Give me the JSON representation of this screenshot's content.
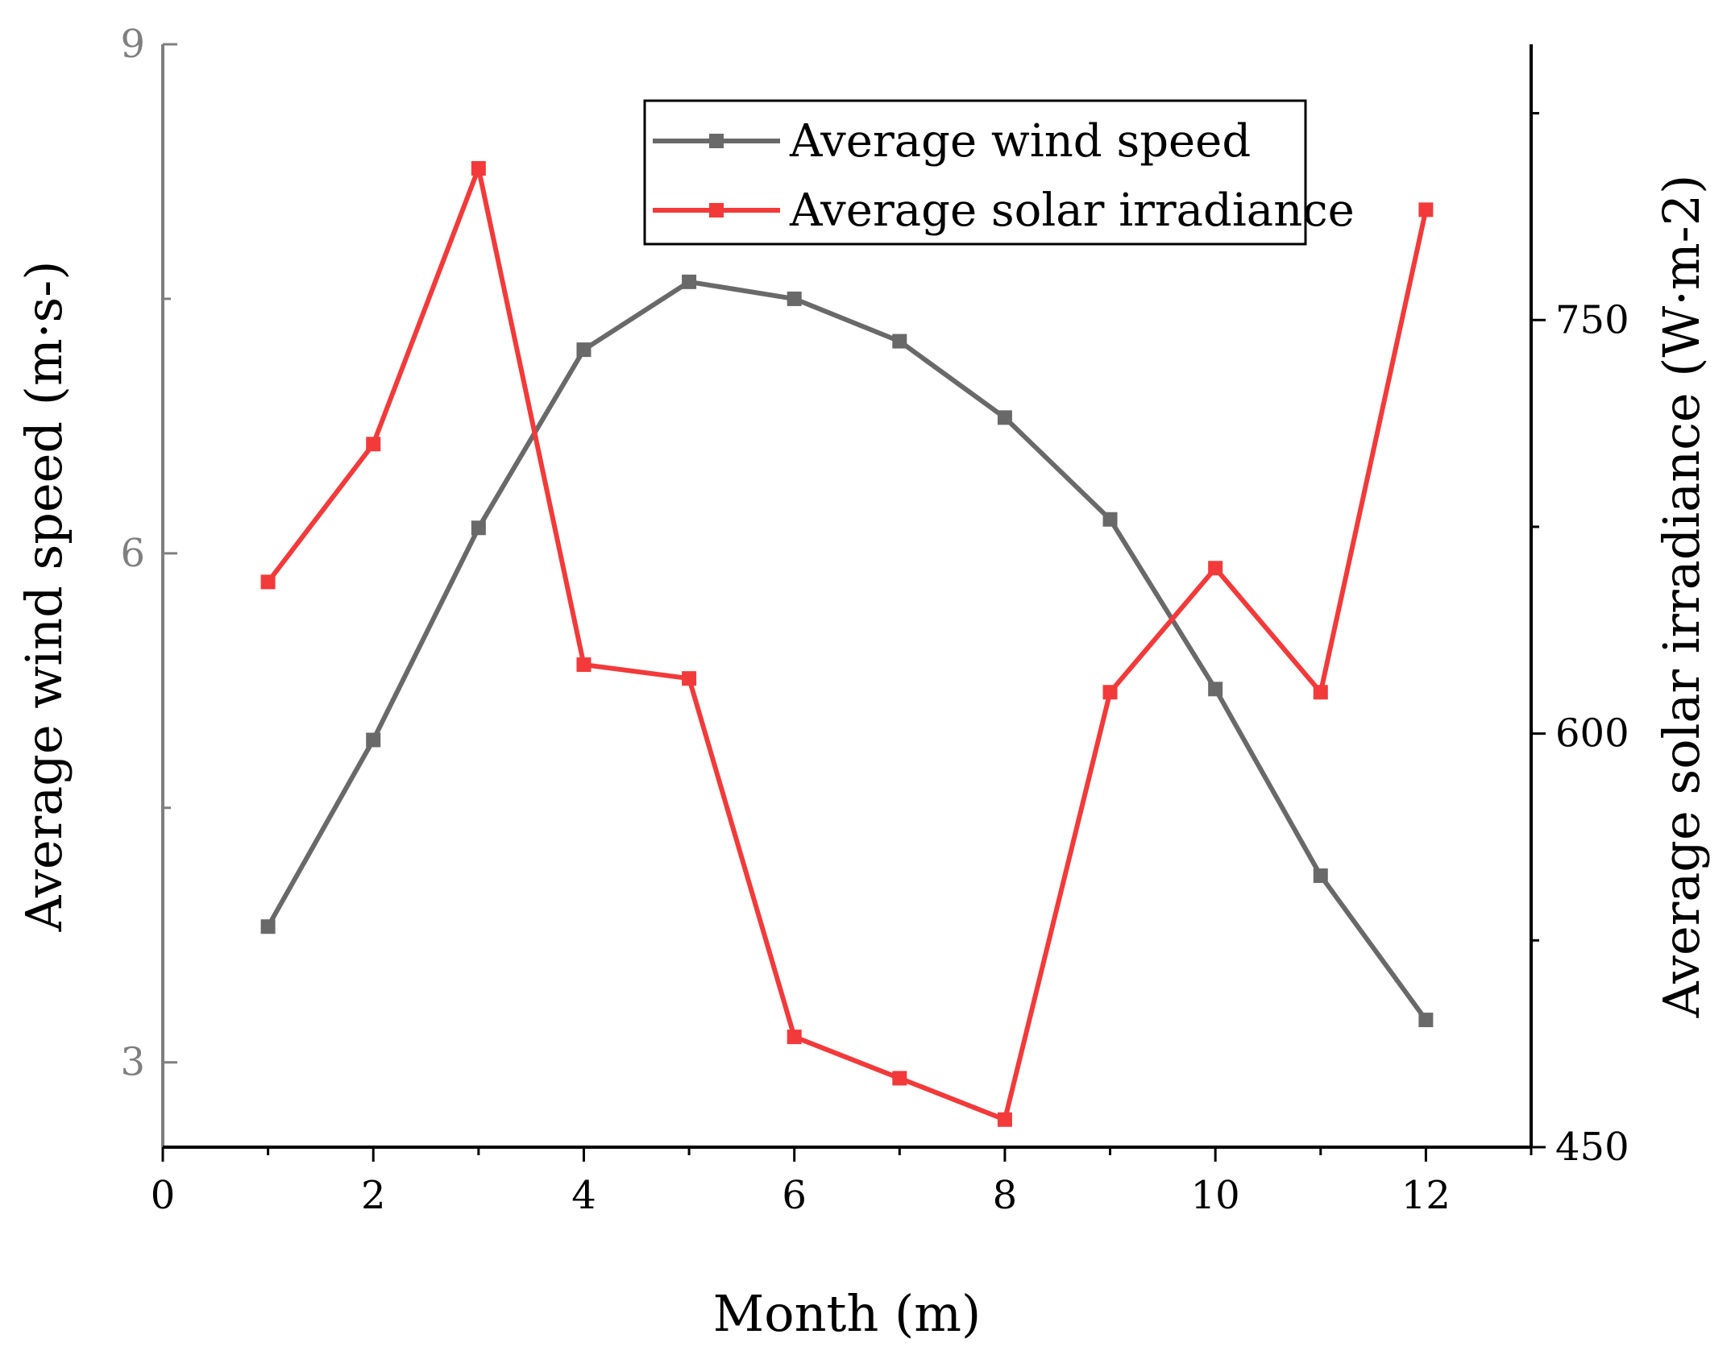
{
  "chart_data": {
    "type": "line",
    "xlabel": "Month (m)",
    "ylabel": "Average wind speed (m·s-)",
    "y2label": "Average solar irradiance (W·m-2)",
    "xlim": [
      0,
      13
    ],
    "ylim": [
      2.5,
      9
    ],
    "y2lim": [
      450,
      850
    ],
    "x_ticks": [
      0,
      2,
      4,
      6,
      8,
      10,
      12
    ],
    "y_ticks": [
      3,
      6,
      9
    ],
    "y2_ticks": [
      450,
      600,
      750
    ],
    "grid": false,
    "legend_position": "top-center",
    "x": [
      1,
      2,
      3,
      4,
      5,
      6,
      7,
      8,
      9,
      10,
      11,
      12
    ],
    "series": [
      {
        "name": "Average wind speed",
        "axis": "left",
        "color": "#696969",
        "marker": "square",
        "values": [
          3.8,
          4.9,
          6.15,
          7.2,
          7.6,
          7.5,
          7.25,
          6.8,
          6.2,
          5.2,
          4.1,
          3.25
        ]
      },
      {
        "name": "Average solar irradiance",
        "axis": "right",
        "color": "#f23a3a",
        "marker": "square",
        "values": [
          655,
          705,
          805,
          625,
          620,
          490,
          475,
          460,
          615,
          660,
          615,
          790
        ]
      }
    ]
  }
}
